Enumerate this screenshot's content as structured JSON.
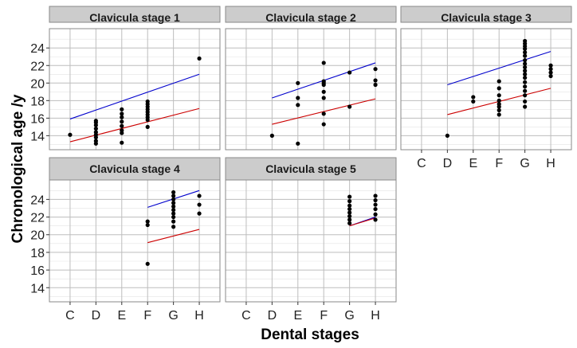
{
  "chart_data": {
    "type": "scatter",
    "xlabel": "Dental stages",
    "ylabel": "Chronological age /y",
    "x_categories": [
      "C",
      "D",
      "E",
      "F",
      "G",
      "H"
    ],
    "y_ticks": [
      14,
      16,
      18,
      20,
      22,
      24
    ],
    "ylim": [
      12.4,
      26.2
    ],
    "grid": true,
    "line_colors": {
      "upper": "#0000cc",
      "lower": "#cc0000"
    },
    "point_color": "#000000",
    "panels": [
      {
        "title": "Clavicula stage 1",
        "points": [
          [
            "C",
            14.1
          ],
          [
            "D",
            13.1
          ],
          [
            "D",
            13.4
          ],
          [
            "D",
            13.8
          ],
          [
            "D",
            14.1
          ],
          [
            "D",
            14.4
          ],
          [
            "D",
            14.8
          ],
          [
            "D",
            15.2
          ],
          [
            "D",
            15.5
          ],
          [
            "D",
            15.7
          ],
          [
            "E",
            13.2
          ],
          [
            "E",
            14.3
          ],
          [
            "E",
            14.6
          ],
          [
            "E",
            15.1
          ],
          [
            "E",
            15.6
          ],
          [
            "E",
            16.1
          ],
          [
            "E",
            16.5
          ],
          [
            "E",
            17.0
          ],
          [
            "F",
            15.0
          ],
          [
            "F",
            15.8
          ],
          [
            "F",
            16.1
          ],
          [
            "F",
            16.4
          ],
          [
            "F",
            16.7
          ],
          [
            "F",
            17.0
          ],
          [
            "F",
            17.3
          ],
          [
            "F",
            17.6
          ],
          [
            "F",
            17.9
          ],
          [
            "H",
            22.8
          ]
        ],
        "upper_line": [
          [
            "C",
            15.9
          ],
          [
            "H",
            21.0
          ]
        ],
        "lower_line": [
          [
            "C",
            13.3
          ],
          [
            "H",
            17.1
          ]
        ]
      },
      {
        "title": "Clavicula stage 2",
        "points": [
          [
            "D",
            14.0
          ],
          [
            "E",
            13.1
          ],
          [
            "E",
            17.5
          ],
          [
            "E",
            18.3
          ],
          [
            "E",
            20.0
          ],
          [
            "F",
            15.3
          ],
          [
            "F",
            16.5
          ],
          [
            "F",
            18.3
          ],
          [
            "F",
            19.0
          ],
          [
            "F",
            19.8
          ],
          [
            "F",
            20.0
          ],
          [
            "F",
            20.2
          ],
          [
            "F",
            22.3
          ],
          [
            "G",
            17.3
          ],
          [
            "G",
            21.2
          ],
          [
            "H",
            19.8
          ],
          [
            "H",
            20.3
          ],
          [
            "H",
            21.6
          ]
        ],
        "upper_line": [
          [
            "D",
            18.3
          ],
          [
            "H",
            22.3
          ]
        ],
        "lower_line": [
          [
            "D",
            15.3
          ],
          [
            "H",
            18.2
          ]
        ]
      },
      {
        "title": "Clavicula stage 3",
        "points": [
          [
            "D",
            14.0
          ],
          [
            "E",
            17.9
          ],
          [
            "E",
            18.4
          ],
          [
            "F",
            16.4
          ],
          [
            "F",
            16.9
          ],
          [
            "F",
            17.3
          ],
          [
            "F",
            17.6
          ],
          [
            "F",
            18.0
          ],
          [
            "F",
            18.6
          ],
          [
            "F",
            19.4
          ],
          [
            "F",
            20.2
          ],
          [
            "G",
            17.3
          ],
          [
            "G",
            17.9
          ],
          [
            "G",
            18.6
          ],
          [
            "G",
            19.1
          ],
          [
            "G",
            19.6
          ],
          [
            "G",
            20.1
          ],
          [
            "G",
            20.6
          ],
          [
            "G",
            21.0
          ],
          [
            "G",
            21.4
          ],
          [
            "G",
            21.8
          ],
          [
            "G",
            22.2
          ],
          [
            "G",
            22.6
          ],
          [
            "G",
            23.1
          ],
          [
            "G",
            23.5
          ],
          [
            "G",
            23.9
          ],
          [
            "G",
            24.2
          ],
          [
            "G",
            24.5
          ],
          [
            "G",
            24.8
          ],
          [
            "H",
            20.8
          ],
          [
            "H",
            21.2
          ],
          [
            "H",
            21.6
          ],
          [
            "H",
            22.0
          ]
        ],
        "upper_line": [
          [
            "D",
            19.8
          ],
          [
            "H",
            23.6
          ]
        ],
        "lower_line": [
          [
            "D",
            16.4
          ],
          [
            "H",
            19.4
          ]
        ]
      },
      {
        "title": "Clavicula stage 4",
        "points": [
          [
            "F",
            16.7
          ],
          [
            "F",
            21.1
          ],
          [
            "F",
            21.5
          ],
          [
            "G",
            20.9
          ],
          [
            "G",
            21.5
          ],
          [
            "G",
            22.0
          ],
          [
            "G",
            22.4
          ],
          [
            "G",
            22.8
          ],
          [
            "G",
            23.2
          ],
          [
            "G",
            23.6
          ],
          [
            "G",
            24.0
          ],
          [
            "G",
            24.4
          ],
          [
            "G",
            24.8
          ],
          [
            "H",
            22.4
          ],
          [
            "H",
            23.4
          ],
          [
            "H",
            24.4
          ]
        ],
        "upper_line": [
          [
            "F",
            23.1
          ],
          [
            "H",
            25.0
          ]
        ],
        "lower_line": [
          [
            "F",
            19.1
          ],
          [
            "H",
            20.6
          ]
        ]
      },
      {
        "title": "Clavicula stage 5",
        "points": [
          [
            "G",
            21.3
          ],
          [
            "G",
            21.7
          ],
          [
            "G",
            22.1
          ],
          [
            "G",
            22.5
          ],
          [
            "G",
            22.9
          ],
          [
            "G",
            23.3
          ],
          [
            "G",
            23.8
          ],
          [
            "G",
            24.3
          ],
          [
            "H",
            21.7
          ],
          [
            "H",
            22.3
          ],
          [
            "H",
            22.9
          ],
          [
            "H",
            23.4
          ],
          [
            "H",
            23.9
          ],
          [
            "H",
            24.4
          ]
        ],
        "upper_line": [
          [
            "G",
            21.0
          ],
          [
            "H",
            22.0
          ]
        ],
        "lower_line": [
          [
            "G",
            21.0
          ],
          [
            "H",
            21.9
          ]
        ]
      }
    ]
  }
}
